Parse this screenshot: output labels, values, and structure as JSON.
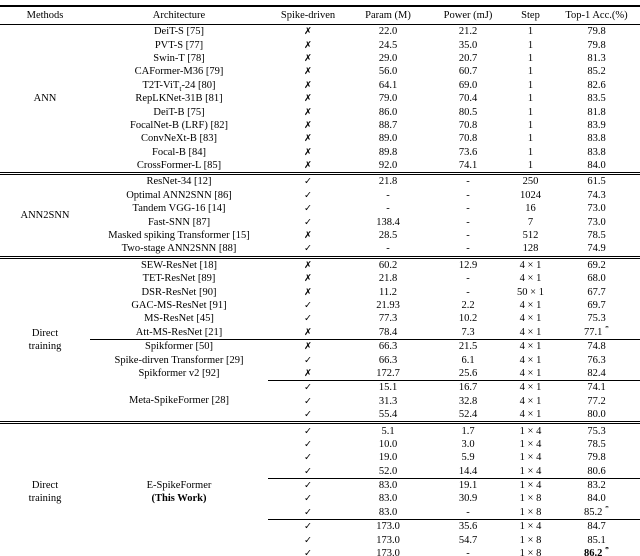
{
  "table": {
    "columns": [
      "Methods",
      "Architecture",
      "Spike-driven",
      "Param (M)",
      "Power (mJ)",
      "Step",
      "Top-1 Acc.(%)"
    ],
    "symbols": {
      "yes": "✓",
      "no": "✗",
      "star": "*"
    },
    "text_color": "#000000",
    "background_color": "#ffffff",
    "sections": [
      {
        "method_lines": [
          "ANN"
        ],
        "rows": [
          {
            "arch": "DeiT-S [75]",
            "spike": "no",
            "param": "22.0",
            "power": "21.2",
            "step": "1",
            "acc": "79.8"
          },
          {
            "arch": "PVT-S [77]",
            "spike": "no",
            "param": "24.5",
            "power": "35.0",
            "step": "1",
            "acc": "79.8"
          },
          {
            "arch": "Swin-T [78]",
            "spike": "no",
            "param": "29.0",
            "power": "20.7",
            "step": "1",
            "acc": "81.3"
          },
          {
            "arch": "CAFormer-M36 [79]",
            "spike": "no",
            "param": "56.0",
            "power": "60.7",
            "step": "1",
            "acc": "85.2"
          },
          {
            "arch_parts": [
              {
                "t": "T2T-ViT"
              },
              {
                "sub": "t"
              },
              {
                "t": "-24 [80]"
              }
            ],
            "spike": "no",
            "param": "64.1",
            "power": "69.0",
            "step": "1",
            "acc": "82.6"
          },
          {
            "arch": "RepLKNet-31B [81]",
            "spike": "no",
            "param": "79.0",
            "power": "70.4",
            "step": "1",
            "acc": "83.5"
          },
          {
            "arch": "DeiT-B [75]",
            "spike": "no",
            "param": "86.0",
            "power": "80.5",
            "step": "1",
            "acc": "81.8"
          },
          {
            "arch": "FocalNet-B (LRF) [82]",
            "spike": "no",
            "param": "88.7",
            "power": "70.8",
            "step": "1",
            "acc": "83.9"
          },
          {
            "arch": "ConvNeXt-B [83]",
            "spike": "no",
            "param": "89.0",
            "power": "70.8",
            "step": "1",
            "acc": "83.8"
          },
          {
            "arch": "Focal-B [84]",
            "spike": "no",
            "param": "89.8",
            "power": "73.6",
            "step": "1",
            "acc": "83.8"
          },
          {
            "arch": "CrossFormer-L [85]",
            "spike": "no",
            "param": "92.0",
            "power": "74.1",
            "step": "1",
            "acc": "84.0"
          }
        ]
      },
      {
        "method_lines": [
          "ANN2SNN"
        ],
        "rows": [
          {
            "arch": "ResNet-34 [12]",
            "spike": "yes",
            "param": "21.8",
            "power": "-",
            "step": "250",
            "acc": "61.5"
          },
          {
            "arch": "Optimal ANN2SNN [86]",
            "spike": "yes",
            "param": "-",
            "power": "-",
            "step": "1024",
            "acc": "74.3"
          },
          {
            "arch": "Tandem VGG-16 [14]",
            "spike": "yes",
            "param": "-",
            "power": "-",
            "step": "16",
            "acc": "73.0"
          },
          {
            "arch": "Fast-SNN [87]",
            "spike": "yes",
            "param": "138.4",
            "power": "-",
            "step": "7",
            "acc": "73.0"
          },
          {
            "arch": "Masked spiking Transformer [15]",
            "spike": "no",
            "param": "28.5",
            "power": "-",
            "step": "512",
            "acc": "78.5"
          },
          {
            "arch": "Two-stage ANN2SNN [88]",
            "spike": "yes",
            "param": "-",
            "power": "-",
            "step": "128",
            "acc": "74.9"
          }
        ]
      },
      {
        "method_lines": [
          "Direct",
          "training"
        ],
        "rows": [
          {
            "arch": "SEW-ResNet [18]",
            "spike": "no",
            "param": "60.2",
            "power": "12.9",
            "step": "4 × 1",
            "acc": "69.2"
          },
          {
            "arch": "TET-ResNet [89]",
            "spike": "no",
            "param": "21.8",
            "power": "-",
            "step": "4 × 1",
            "acc": "68.0"
          },
          {
            "arch": "DSR-ResNet [90]",
            "spike": "no",
            "param": "11.2",
            "power": "-",
            "step": "50 × 1",
            "acc": "67.7"
          },
          {
            "arch": "GAC-MS-ResNet [91]",
            "spike": "yes",
            "param": "21.93",
            "power": "2.2",
            "step": "4 × 1",
            "acc": "69.7"
          },
          {
            "arch": "MS-ResNet [45]",
            "spike": "yes",
            "param": "77.3",
            "power": "10.2",
            "step": "4 × 1",
            "acc": "75.3"
          },
          {
            "arch": "Att-MS-ResNet [21]",
            "spike": "no",
            "param": "78.4",
            "power": "7.3",
            "step": "4 × 1",
            "acc": "77.1",
            "acc_star": true,
            "cline": 2
          },
          {
            "arch": "Spikformer [50]",
            "spike": "no",
            "param": "66.3",
            "power": "21.5",
            "step": "4 × 1",
            "acc": "74.8"
          },
          {
            "arch": "Spike-dirven Transformer [29]",
            "spike": "yes",
            "param": "66.3",
            "power": "6.1",
            "step": "4 × 1",
            "acc": "76.3"
          },
          {
            "arch": "Spikformer v2 [92]",
            "spike": "no",
            "param": "172.7",
            "power": "25.6",
            "step": "4 × 1",
            "acc": "82.4",
            "cline": 3
          },
          {
            "arch": "Meta-SpikeFormer [28]",
            "arch_rowspan": 3,
            "spike": "yes",
            "param": "15.1",
            "power": "16.7",
            "step": "4 × 1",
            "acc": "74.1"
          },
          {
            "spike": "yes",
            "param": "31.3",
            "power": "32.8",
            "step": "4 × 1",
            "acc": "77.2"
          },
          {
            "spike": "yes",
            "param": "55.4",
            "power": "52.4",
            "step": "4 × 1",
            "acc": "80.0"
          }
        ]
      },
      {
        "method_lines": [
          "Direct",
          "training"
        ],
        "rows": [
          {
            "arch_lines": [
              "E-SpikeFormer",
              "(This Work)"
            ],
            "arch_bold_line": 1,
            "arch_rowspan": 10,
            "spike": "yes",
            "param": "5.1",
            "power": "1.7",
            "step": "1 × 4",
            "acc": "75.3"
          },
          {
            "spike": "yes",
            "param": "10.0",
            "power": "3.0",
            "step": "1 × 4",
            "acc": "78.5"
          },
          {
            "spike": "yes",
            "param": "19.0",
            "power": "5.9",
            "step": "1 × 4",
            "acc": "79.8"
          },
          {
            "spike": "yes",
            "param": "52.0",
            "power": "14.4",
            "step": "1 × 4",
            "acc": "80.6",
            "cline": 3
          },
          {
            "spike": "yes",
            "param": "83.0",
            "power": "19.1",
            "step": "1 × 4",
            "acc": "83.2"
          },
          {
            "spike": "yes",
            "param": "83.0",
            "power": "30.9",
            "step": "1 × 8",
            "acc": "84.0"
          },
          {
            "spike": "yes",
            "param": "83.0",
            "power": "-",
            "step": "1 × 8",
            "acc": "85.2",
            "acc_star": true,
            "cline": 3
          },
          {
            "spike": "yes",
            "param": "173.0",
            "power": "35.6",
            "step": "1 × 4",
            "acc": "84.7"
          },
          {
            "spike": "yes",
            "param": "173.0",
            "power": "54.7",
            "step": "1 × 8",
            "acc": "85.1"
          },
          {
            "spike": "yes",
            "param": "173.0",
            "power": "-",
            "step": "1 × 8",
            "acc": "86.2",
            "acc_star": true,
            "acc_bold": true
          }
        ]
      }
    ]
  }
}
